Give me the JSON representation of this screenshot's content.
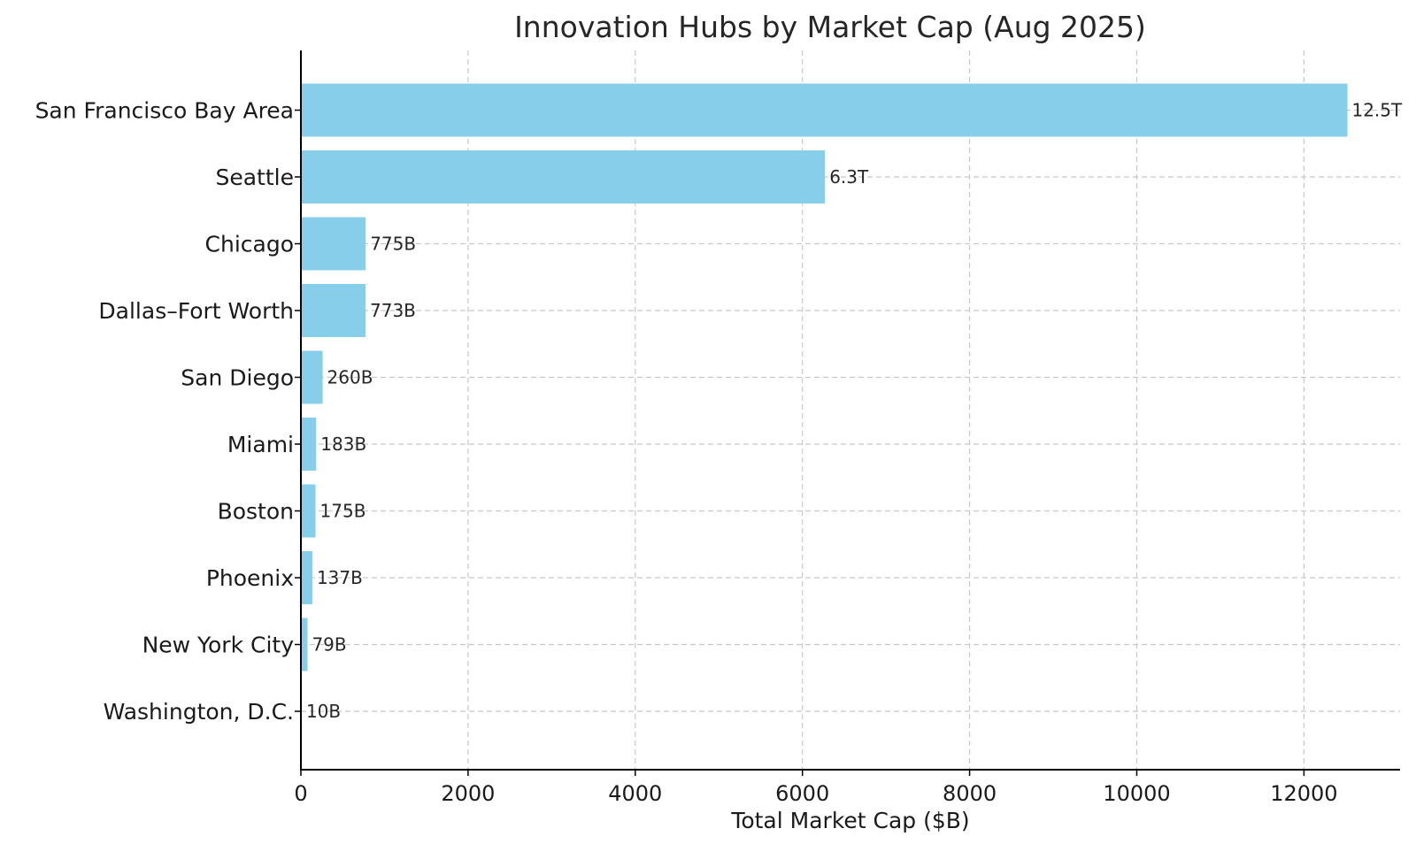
{
  "chart_data": {
    "type": "bar",
    "orientation": "horizontal",
    "title": "Innovation Hubs by Market Cap (Aug 2025)",
    "xlabel": "Total Market Cap ($B)",
    "ylabel": "",
    "xlim": [
      0,
      13150
    ],
    "xticks": [
      0,
      2000,
      4000,
      6000,
      8000,
      10000,
      12000
    ],
    "grid": true,
    "bar_color": "#87ceeb",
    "categories": [
      "San Francisco Bay Area",
      "Seattle",
      "Chicago",
      "Dallas–Fort Worth",
      "San Diego",
      "Miami",
      "Boston",
      "Phoenix",
      "New York City",
      "Washington, D.C."
    ],
    "values": [
      12520,
      6270,
      775,
      773,
      260,
      183,
      175,
      137,
      79,
      10
    ],
    "data_labels": [
      "12.5T",
      "6.3T",
      "775B",
      "773B",
      "260B",
      "183B",
      "175B",
      "137B",
      "79B",
      "10B"
    ]
  }
}
